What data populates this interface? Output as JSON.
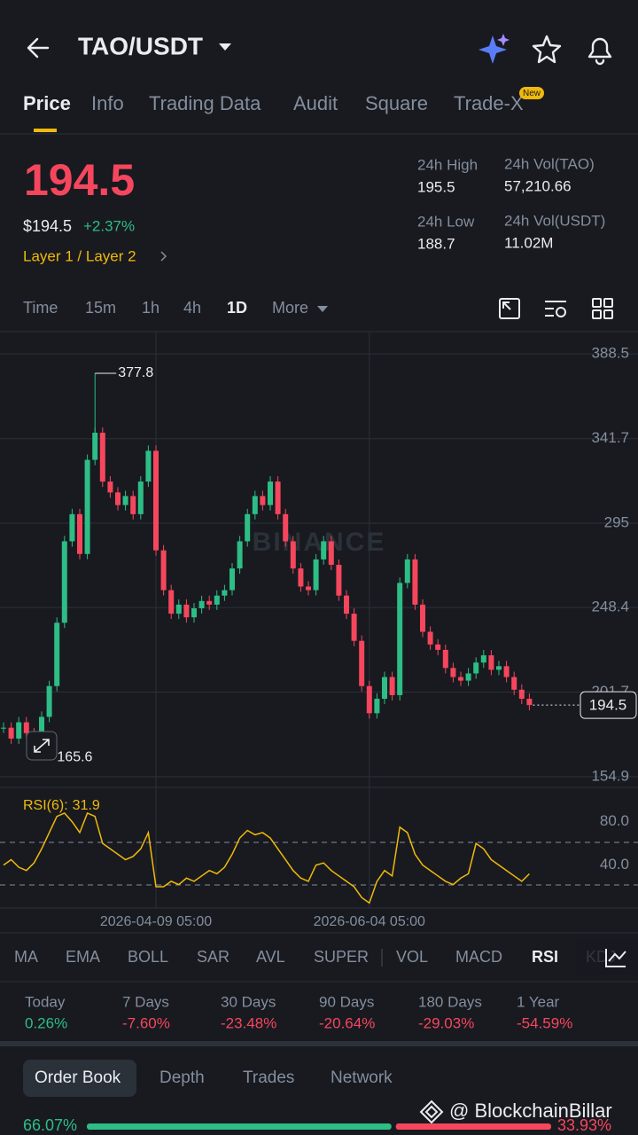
{
  "header": {
    "pair": "TAO/USDT"
  },
  "tabs": [
    "Price",
    "Info",
    "Trading Data",
    "Audit",
    "Square",
    "Trade-X"
  ],
  "new_badge": "New",
  "ticker": {
    "price": "194.5",
    "usd_price": "$194.5",
    "change": "+2.37%",
    "tags": "Layer 1 / Layer 2",
    "stats": [
      {
        "label": "24h High",
        "value": "195.5"
      },
      {
        "label": "24h Vol(TAO)",
        "value": "57,210.66"
      },
      {
        "label": "24h Low",
        "value": "188.7"
      },
      {
        "label": "24h Vol(USDT)",
        "value": "11.02M"
      }
    ]
  },
  "intervals": [
    "Time",
    "15m",
    "1h",
    "4h",
    "1D",
    "More"
  ],
  "chart_data": {
    "type": "candlestick",
    "watermark": "BINANCE",
    "close": [
      182,
      176,
      185,
      179,
      172,
      188,
      205,
      240,
      285,
      300,
      278,
      330,
      345,
      318,
      312,
      305,
      310,
      300,
      318,
      335,
      280,
      258,
      245,
      250,
      243,
      248,
      252,
      250,
      255,
      258,
      270,
      285,
      300,
      310,
      305,
      318,
      300,
      285,
      270,
      260,
      258,
      275,
      285,
      272,
      255,
      245,
      230,
      205,
      190,
      198,
      210,
      200,
      262,
      275,
      250,
      235,
      228,
      225,
      215,
      210,
      208,
      212,
      218,
      222,
      214,
      216,
      210,
      203,
      198,
      194.5
    ],
    "up_color": "#2ebd85",
    "down_color": "#f6465d",
    "ylim": [
      150,
      393
    ],
    "yticks": [
      388.5,
      341.7,
      295.0,
      248.4,
      201.7,
      154.9
    ],
    "xticks": [
      {
        "value": 20,
        "label": "2026-04-09 05:00"
      },
      {
        "value": 48,
        "label": "2026-06-04 05:00"
      }
    ],
    "annotations": [
      {
        "index": 12,
        "value": 377.8
      },
      {
        "index": 4,
        "value": 165.6
      }
    ],
    "grid": true,
    "rsi": {
      "title": "RSI(6):",
      "color": "#f0b90b",
      "values": [
        40,
        45,
        38,
        35,
        42,
        55,
        70,
        85,
        88,
        80,
        70,
        88,
        85,
        60,
        55,
        50,
        45,
        48,
        55,
        70,
        20,
        20,
        25,
        22,
        28,
        25,
        30,
        35,
        32,
        38,
        50,
        65,
        72,
        68,
        70,
        65,
        55,
        45,
        35,
        28,
        25,
        40,
        42,
        35,
        30,
        25,
        20,
        10,
        5,
        25,
        35,
        30,
        75,
        70,
        50,
        40,
        35,
        30,
        25,
        22,
        28,
        32,
        60,
        55,
        45,
        40,
        35,
        30,
        25,
        31.9
      ],
      "ylim": [
        2,
        106
      ],
      "yticks": [
        {
          "value": 80,
          "label": "80.0"
        },
        {
          "value": 40,
          "label": "40.0"
        }
      ]
    }
  },
  "indicators": [
    "MA",
    "EMA",
    "BOLL",
    "SAR",
    "AVL",
    "SUPER",
    "VOL",
    "MACD",
    "RSI",
    "KDJ"
  ],
  "performance": [
    {
      "label": "Today",
      "value": "0.26%"
    },
    {
      "label": "7 Days",
      "value": "-7.60%"
    },
    {
      "label": "30 Days",
      "value": "-23.48%"
    },
    {
      "label": "90 Days",
      "value": "-20.64%"
    },
    {
      "label": "180 Days",
      "value": "-29.03%"
    },
    {
      "label": "1 Year",
      "value": "-54.59%"
    }
  ],
  "book_tabs": [
    "Order Book",
    "Depth",
    "Trades",
    "Network"
  ],
  "depth_ratio": {
    "buy": {
      "value": 66.07,
      "label": "66.07%"
    },
    "sell": {
      "value": 33.93,
      "label": "33.93%"
    }
  },
  "watermark": "@ BlockchainBillar"
}
